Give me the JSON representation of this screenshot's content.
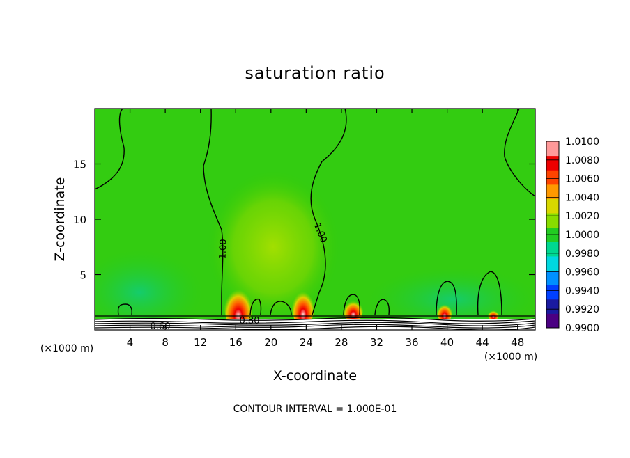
{
  "chart_data": {
    "type": "heatmap",
    "title": "saturation ratio",
    "xlabel": "X-coordinate",
    "ylabel": "Z-coordinate",
    "x_unit": "(×1000 m)",
    "xlim": [
      0,
      50
    ],
    "ylim": [
      0,
      20
    ],
    "x_ticks": [
      4,
      8,
      12,
      16,
      20,
      24,
      28,
      32,
      36,
      40,
      44,
      48
    ],
    "y_ticks": [
      5,
      10,
      15
    ],
    "colorbar": {
      "min": 0.99,
      "max": 1.01,
      "ticks": [
        "1.0100",
        "1.0080",
        "1.0060",
        "1.0040",
        "1.0020",
        "1.0000",
        "0.9980",
        "0.9960",
        "0.9940",
        "0.9920",
        "0.9900"
      ],
      "colors": [
        "#4b0082",
        "#1a1aa0",
        "#0040ff",
        "#0090ff",
        "#00d8e0",
        "#00d890",
        "#22cc22",
        "#88dd00",
        "#d8d800",
        "#ff9900",
        "#ff4400",
        "#ee0000",
        "#ff9999"
      ]
    },
    "contour_labels": [
      "1.00",
      "1.00",
      "0.80",
      "0.60"
    ],
    "footer": "CONTOUR INTERVAL = 1.000E-01"
  }
}
